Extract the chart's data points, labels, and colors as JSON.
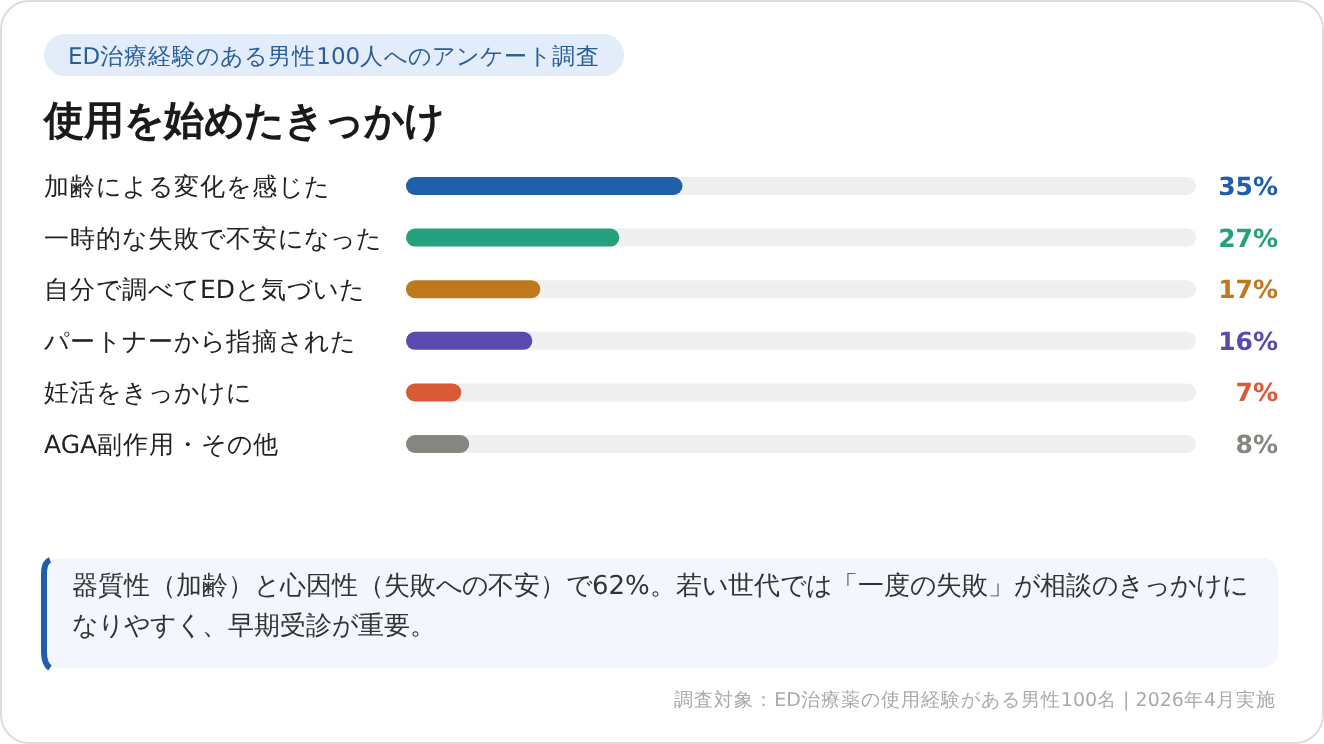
{
  "chart_data": {
    "type": "bar",
    "orientation": "horizontal",
    "subtitle": "ED治療経験のある男性100人へのアンケート調査",
    "title": "使用を始めたきっかけ",
    "categories": [
      "加齢による変化を感じた",
      "一時的な失敗で不安になった",
      "自分で調べてEDと気づいた",
      "パートナーから指摘された",
      "妊活をきっかけに",
      "AGA副作用・その他"
    ],
    "values": [
      35,
      27,
      17,
      16,
      7,
      8
    ],
    "colors": [
      "#1f5ea8",
      "#26a07c",
      "#c0781c",
      "#5a4ab0",
      "#d95a36",
      "#868680"
    ],
    "value_labels": [
      "35%",
      "27%",
      "17%",
      "16%",
      "7%",
      "8%"
    ],
    "xlim": [
      0,
      100
    ],
    "annotations": [
      "器質性（加齢）と心因性（失敗への不安）で62%。若い世代では「一度の失敗」が相談のきっかけになりやすく、早期受診が重要。",
      "調査対象：ED治療薬の使用経験がある男性100名 | 2026年4月実施"
    ]
  }
}
